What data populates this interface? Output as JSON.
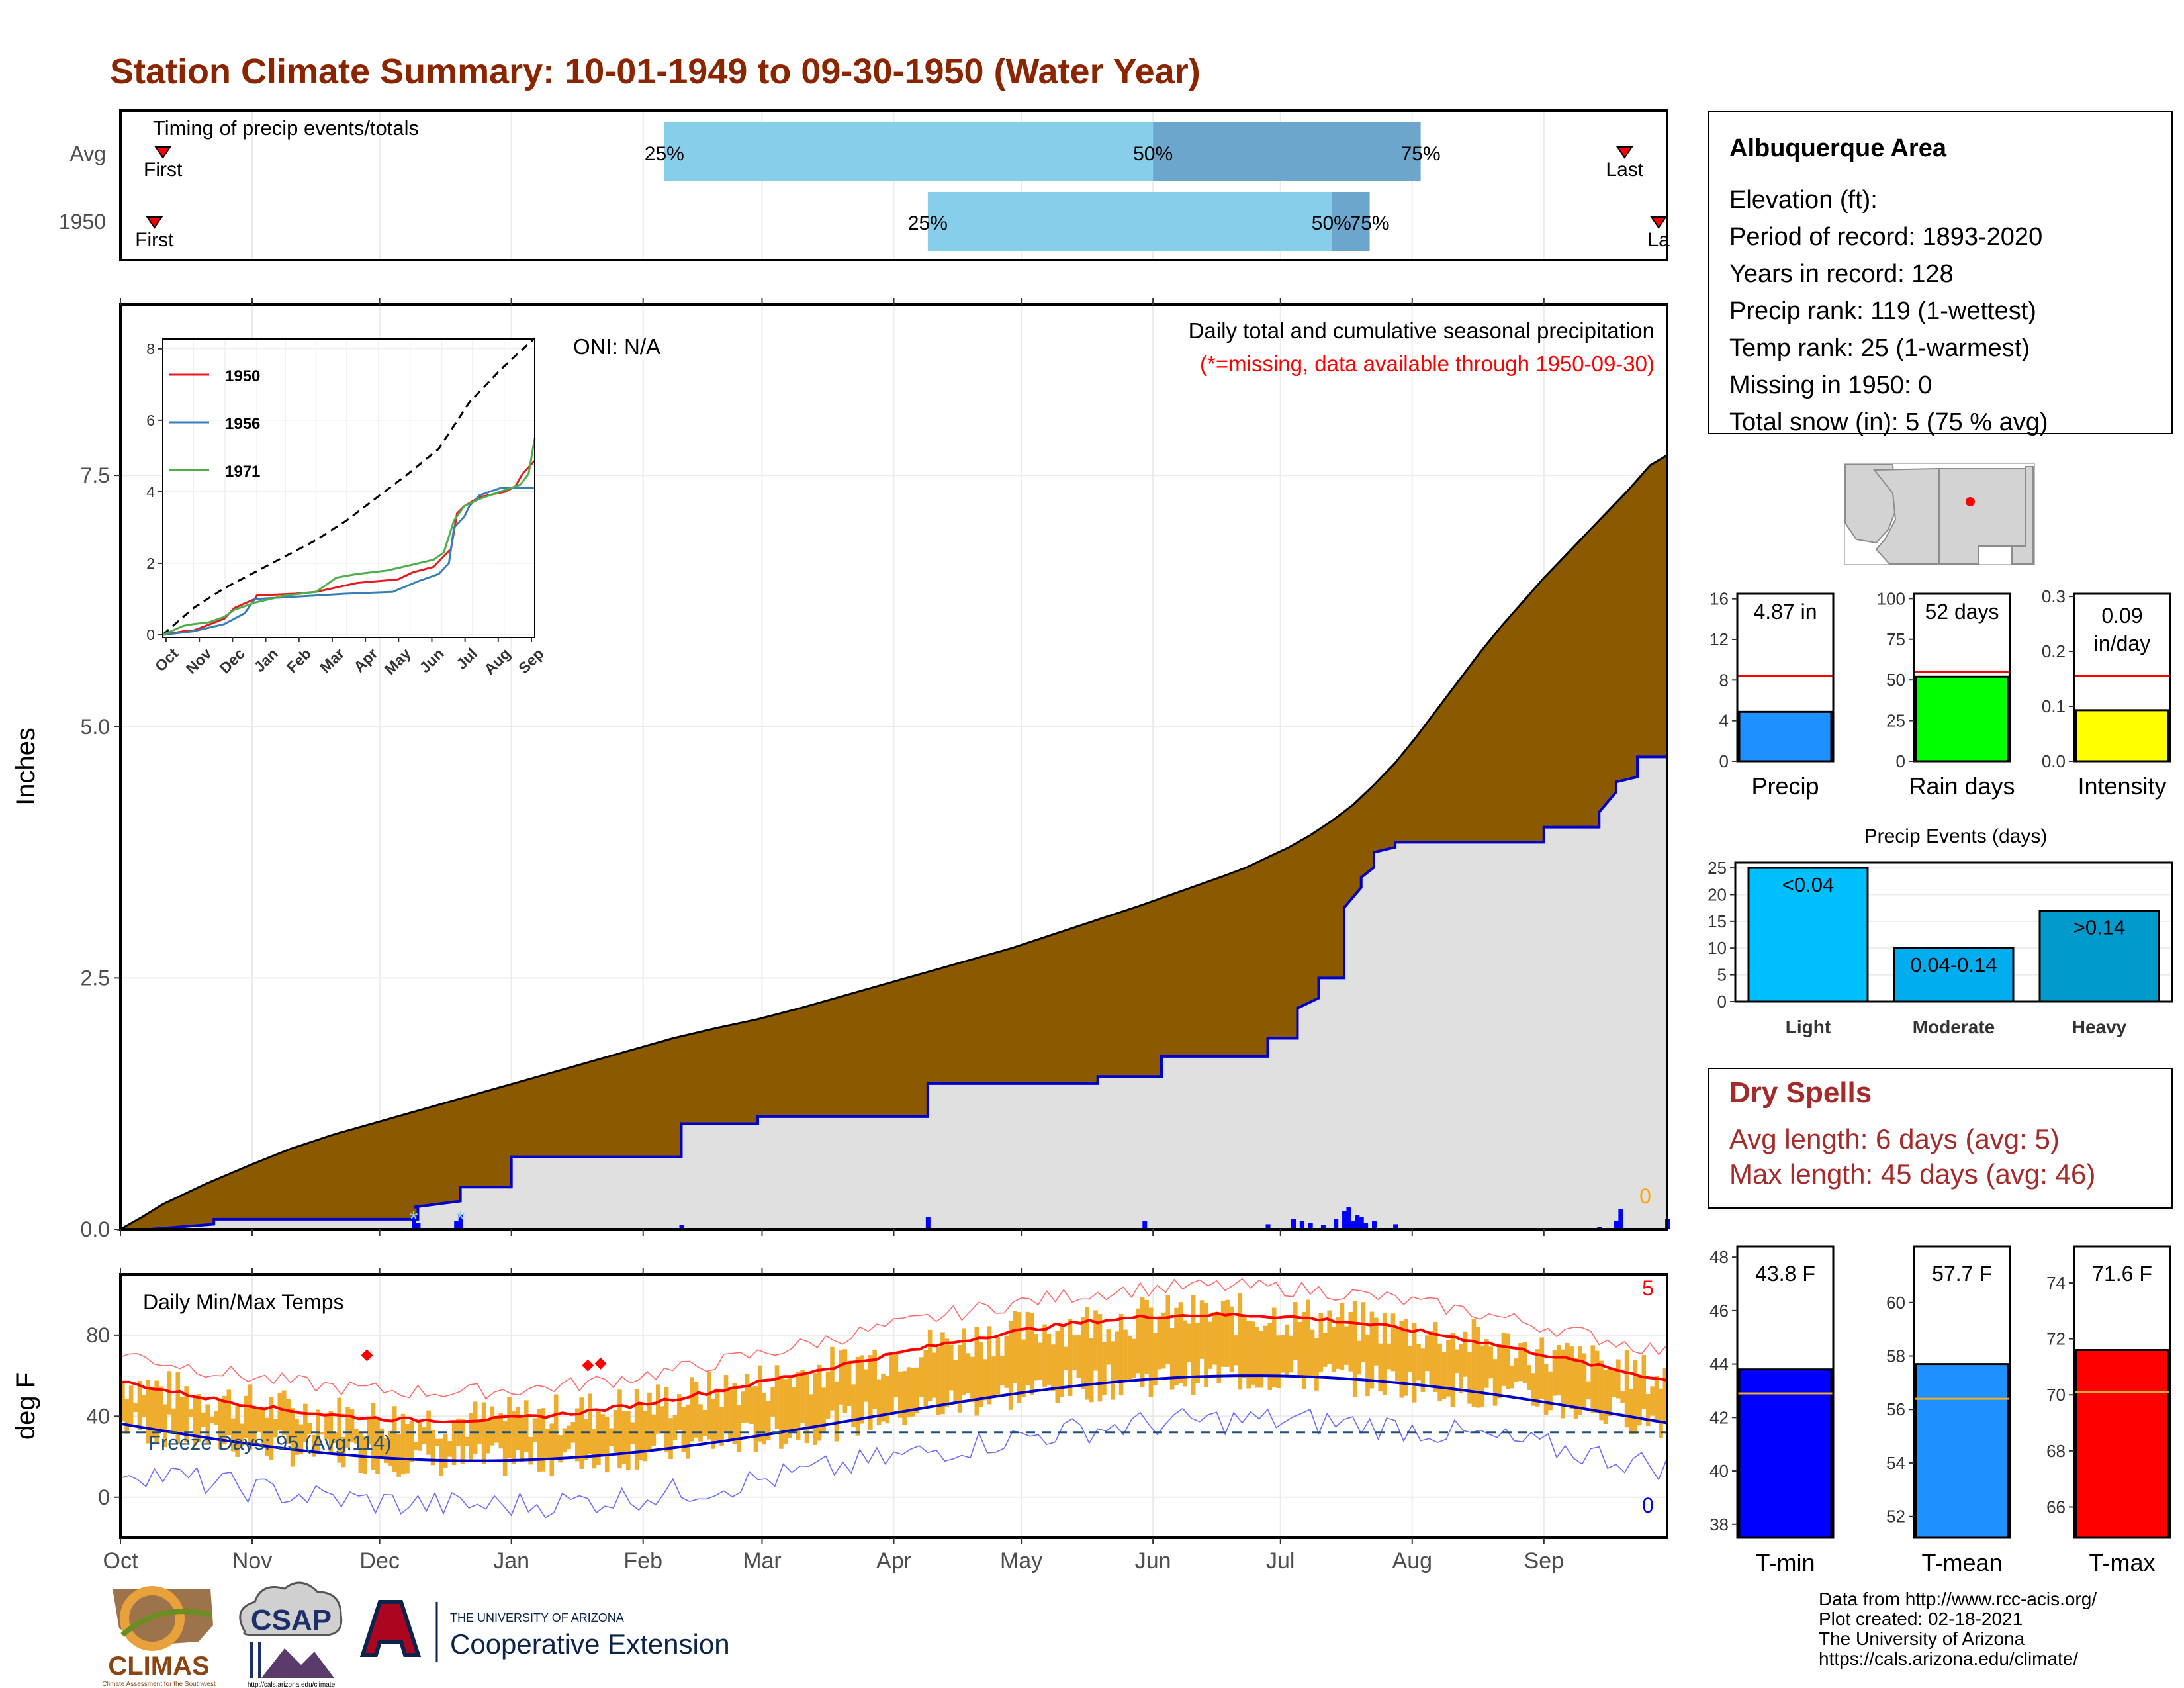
{
  "title": "Station Climate Summary: 10-01-1949 to 09-30-1950 (Water Year)",
  "colors": {
    "title": "#8B2500",
    "precip_fill": "#8B5A00",
    "observed_fill": "#E0E0E0",
    "blue_line": "#0000CD",
    "timing_light": "#87CEEB",
    "timing_dark": "#6CA6CD",
    "temp_bar": "#EEAD2D",
    "red_line": "#FF0000",
    "freeze_line": "#1F4E79",
    "precip_panel": "#1E90FF",
    "raindays_panel": "#00FF00",
    "intensity_panel": "#FFFF00",
    "event_light": "#00BFFF",
    "event_moderate": "#00AEEF",
    "event_heavy": "#009ACD",
    "dry_spells": "#A52A2A",
    "tmin": "#0000FF",
    "tmean": "#1E90FF",
    "tmax": "#FF0000",
    "avg_marker": "#EEAD2D"
  },
  "timing": {
    "label": "Timing of precip events/totals",
    "rows": [
      {
        "name": "Avg",
        "first_label": "First",
        "last_label": "Last",
        "first_day": 10,
        "last_day": 354,
        "p25_day": 128,
        "p50_day": 243,
        "p75_day": 306,
        "p25_label": "25%",
        "p50_label": "50%",
        "p75_label": "75%"
      },
      {
        "name": "1950",
        "first_label": "First",
        "last_label": "La",
        "first_day": 8,
        "last_day": 362,
        "p25_day": 190,
        "p50_day": 285,
        "p75_day": 294,
        "p25_label": "25%",
        "p50_label": "50%",
        "p75_label": "75%"
      }
    ]
  },
  "chart_data": [
    {
      "type": "area",
      "name": "precip-main",
      "title": "Daily total and cumulative seasonal precipitation",
      "subtitle": "(*=missing, data available through 1950-09-30)",
      "oni_label": "ONI: N/A",
      "ylabel": "Inches",
      "ylim": [
        0,
        9.2
      ],
      "yticks": [
        0,
        2.5,
        5.0,
        7.5
      ],
      "ytick_labels": [
        "0.0",
        "2.5",
        "5.0",
        "7.5"
      ],
      "xlim": [
        0,
        364
      ],
      "missing_count_label": "0",
      "avg_cumulative": {
        "x": [
          0,
          5,
          10,
          20,
          30,
          40,
          50,
          60,
          70,
          80,
          90,
          100,
          110,
          120,
          130,
          140,
          150,
          160,
          170,
          180,
          190,
          200,
          210,
          220,
          230,
          240,
          250,
          260,
          265,
          270,
          275,
          280,
          285,
          290,
          295,
          300,
          305,
          310,
          315,
          320,
          325,
          330,
          335,
          340,
          345,
          350,
          355,
          360,
          364
        ],
        "y": [
          0,
          0.12,
          0.25,
          0.45,
          0.63,
          0.8,
          0.94,
          1.06,
          1.18,
          1.3,
          1.42,
          1.54,
          1.66,
          1.78,
          1.9,
          2.0,
          2.09,
          2.2,
          2.32,
          2.44,
          2.56,
          2.68,
          2.8,
          2.94,
          3.08,
          3.22,
          3.37,
          3.52,
          3.6,
          3.7,
          3.8,
          3.92,
          4.06,
          4.22,
          4.42,
          4.64,
          4.9,
          5.18,
          5.46,
          5.74,
          6.0,
          6.24,
          6.48,
          6.7,
          6.92,
          7.14,
          7.36,
          7.6,
          7.7
        ]
      },
      "observed_cumulative": {
        "x": [
          0,
          7,
          22,
          22,
          70,
          70,
          69,
          80,
          80,
          92,
          92,
          132,
          132,
          150,
          150,
          190,
          190,
          230,
          230,
          245,
          245,
          270,
          270,
          277,
          277,
          282,
          282,
          288,
          288,
          292,
          292,
          295,
          295,
          300,
          300,
          335,
          335,
          348,
          348,
          352,
          352,
          357,
          357,
          364,
          364
        ],
        "y": [
          0,
          0,
          0.05,
          0.1,
          0.1,
          0.22,
          0.22,
          0.28,
          0.42,
          0.42,
          0.72,
          0.72,
          1.05,
          1.05,
          1.12,
          1.12,
          1.45,
          1.45,
          1.52,
          1.52,
          1.72,
          1.72,
          1.9,
          1.9,
          2.2,
          2.3,
          2.5,
          2.5,
          3.2,
          3.4,
          3.5,
          3.6,
          3.75,
          3.8,
          3.85,
          3.85,
          4.0,
          4.0,
          4.15,
          4.35,
          4.45,
          4.5,
          4.7,
          4.7,
          4.87
        ]
      },
      "daily": {
        "x": [
          69,
          70,
          79,
          80,
          132,
          190,
          241,
          270,
          276,
          278,
          280,
          283,
          286,
          288,
          289,
          290,
          291,
          292,
          293,
          295,
          300,
          348,
          352,
          353,
          364
        ],
        "y": [
          0.12,
          0.06,
          0.08,
          0.14,
          0.04,
          0.12,
          0.08,
          0.05,
          0.1,
          0.08,
          0.06,
          0.04,
          0.1,
          0.18,
          0.22,
          0.08,
          0.14,
          0.12,
          0.06,
          0.08,
          0.05,
          0.02,
          0.08,
          0.2,
          0.1
        ]
      },
      "missing_marks": {
        "x": [
          69,
          80
        ],
        "label": "*"
      }
    },
    {
      "type": "line",
      "name": "inset-cumulative",
      "categories": [
        "Oct",
        "Nov",
        "Dec",
        "Jan",
        "Feb",
        "Mar",
        "Apr",
        "May",
        "Jun",
        "Jul",
        "Aug",
        "Sep"
      ],
      "ylim": [
        0,
        8.2
      ],
      "yticks": [
        0,
        2,
        4,
        6,
        8
      ],
      "series": [
        {
          "name": "",
          "style": "dashed",
          "color": "#000000",
          "x": [
            0,
            30,
            60,
            90,
            120,
            150,
            180,
            210,
            240,
            270,
            300,
            330,
            364
          ],
          "y": [
            0,
            0.75,
            1.3,
            1.75,
            2.2,
            2.65,
            3.2,
            3.85,
            4.5,
            5.2,
            6.5,
            7.4,
            8.3
          ]
        },
        {
          "name": "1950",
          "color": "#E41A1C",
          "x": [
            0,
            20,
            30,
            60,
            70,
            90,
            92,
            130,
            150,
            190,
            230,
            245,
            265,
            275,
            282,
            288,
            295,
            310,
            335,
            345,
            352,
            364
          ],
          "y": [
            0,
            0.1,
            0.12,
            0.45,
            0.75,
            1.0,
            1.1,
            1.15,
            1.2,
            1.45,
            1.55,
            1.75,
            1.9,
            2.2,
            2.4,
            3.4,
            3.6,
            3.85,
            4.0,
            4.15,
            4.5,
            4.87
          ]
        },
        {
          "name": "1956",
          "color": "#377EB8",
          "x": [
            0,
            30,
            60,
            80,
            90,
            150,
            180,
            225,
            250,
            270,
            280,
            285,
            295,
            300,
            310,
            330,
            350,
            364
          ],
          "y": [
            0,
            0.1,
            0.3,
            0.6,
            1.0,
            1.1,
            1.15,
            1.2,
            1.5,
            1.7,
            2.0,
            3.0,
            3.3,
            3.6,
            3.9,
            4.1,
            4.1,
            4.1
          ]
        },
        {
          "name": "1971",
          "color": "#4DAF4A",
          "x": [
            0,
            20,
            30,
            45,
            60,
            70,
            90,
            120,
            150,
            170,
            190,
            220,
            250,
            265,
            275,
            285,
            295,
            310,
            330,
            350,
            358,
            364
          ],
          "y": [
            0,
            0.25,
            0.3,
            0.35,
            0.5,
            0.7,
            0.9,
            1.1,
            1.2,
            1.6,
            1.7,
            1.8,
            2.0,
            2.1,
            2.3,
            3.2,
            3.6,
            3.8,
            4.0,
            4.2,
            4.5,
            5.5
          ]
        }
      ]
    },
    {
      "type": "line",
      "name": "daily-temps",
      "title": "Daily Min/Max Temps",
      "ylabel": "deg F",
      "ylim": [
        -20,
        110
      ],
      "yticks": [
        0,
        40,
        80
      ],
      "categories": [
        "Oct",
        "Nov",
        "Dec",
        "Jan",
        "Feb",
        "Mar",
        "Apr",
        "May",
        "Jun",
        "Jul",
        "Aug",
        "Sep"
      ],
      "month_start_days": [
        0,
        31,
        61,
        92,
        123,
        151,
        182,
        212,
        243,
        273,
        304,
        335
      ],
      "freeze_label": "Freeze Days: 95 (Avg:114)",
      "freeze_value": 32,
      "max_count_label": "5",
      "min_count_label": "0",
      "record_high_marks": [
        {
          "x": 58,
          "y": 70
        },
        {
          "x": 110,
          "y": 65
        },
        {
          "x": 113,
          "y": 66
        }
      ]
    },
    {
      "type": "bar",
      "name": "precip-total",
      "xlabel": "Precip",
      "value_label": "4.87 in",
      "value": 4.87,
      "avg": 8.4,
      "ylim": [
        0,
        16.5
      ],
      "yticks": [
        0,
        4,
        8,
        12,
        16
      ]
    },
    {
      "type": "bar",
      "name": "rain-days",
      "xlabel": "Rain days",
      "value_label": "52 days",
      "value": 52,
      "avg": 55,
      "ylim": [
        0,
        103
      ],
      "yticks": [
        0,
        25,
        50,
        75,
        100
      ]
    },
    {
      "type": "bar",
      "name": "intensity",
      "xlabel": "Intensity",
      "value_label": "0.09",
      "value_label_2": "in/day",
      "value": 0.093,
      "avg": 0.155,
      "ylim": [
        0,
        0.305
      ],
      "yticks": [
        0.0,
        0.1,
        0.2,
        0.3
      ],
      "ytick_labels": [
        "0.0",
        "0.1",
        "0.2",
        "0.3"
      ]
    },
    {
      "type": "bar",
      "name": "precip-events",
      "title": "Precip Events (days)",
      "categories": [
        "Light",
        "Moderate",
        "Heavy"
      ],
      "values": [
        25,
        10,
        17
      ],
      "bar_labels": [
        "<0.04",
        "0.04-0.14",
        ">0.14"
      ],
      "ylim": [
        0,
        26
      ],
      "yticks": [
        0,
        5,
        10,
        15,
        20,
        25
      ]
    },
    {
      "type": "bar",
      "name": "tmin",
      "xlabel": "T-min",
      "value_label": "43.8 F",
      "value": 43.8,
      "avg": 42.9,
      "ylim": [
        37.5,
        48.4
      ],
      "yticks": [
        38,
        40,
        42,
        44,
        46,
        48
      ]
    },
    {
      "type": "bar",
      "name": "tmean",
      "xlabel": "T-mean",
      "value_label": "57.7 F",
      "value": 57.7,
      "avg": 56.4,
      "ylim": [
        51.2,
        62.1
      ],
      "yticks": [
        52,
        54,
        56,
        58,
        60
      ]
    },
    {
      "type": "bar",
      "name": "tmax",
      "xlabel": "T-max",
      "value_label": "71.6 F",
      "value": 71.6,
      "avg": 70.1,
      "ylim": [
        64.9,
        75.3
      ],
      "yticks": [
        66,
        68,
        70,
        72,
        74
      ]
    }
  ],
  "station": {
    "name": "Albuquerque Area",
    "lines": [
      "Elevation (ft):",
      "Period of record: 1893-2020",
      "Years in record: 128",
      "Precip rank: 119 (1-wettest)",
      "Temp rank: 25 (1-warmest)",
      "Missing in 1950: 0",
      "Total snow (in): 5 (75 % avg)"
    ]
  },
  "dry_spells": {
    "title": "Dry Spells",
    "avg": "Avg length: 6 days (avg: 5)",
    "max": "Max length: 45 days (avg: 46)"
  },
  "credits": {
    "lines": [
      "Data from http://www.rcc-acis.org/",
      "Plot created: 02-18-2021",
      "The University of Arizona",
      "https://cals.arizona.edu/climate/"
    ]
  },
  "logos": {
    "climas": "CLIMAS",
    "climas_sub": "Climate Assessment for the Southwest",
    "csap": "CSAP",
    "csap_url": "http://cals.arizona.edu/climate",
    "ua_top": "THE UNIVERSITY OF ARIZONA",
    "ua_main": "Cooperative Extension"
  }
}
